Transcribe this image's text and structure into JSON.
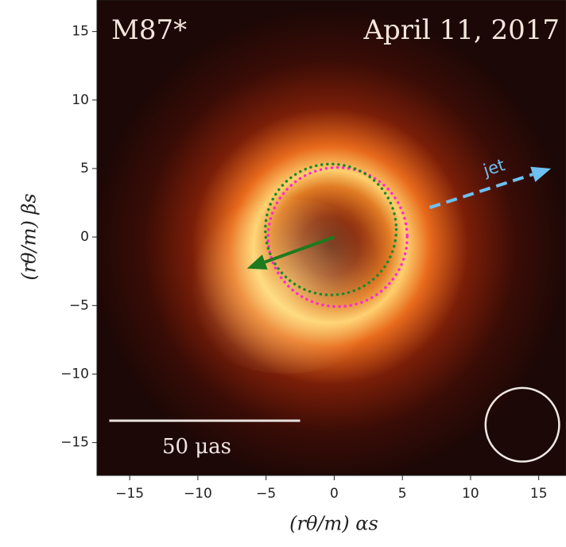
{
  "chart_data": {
    "type": "image",
    "title": "M87*",
    "subtitle": "April 11, 2017",
    "xlabel": "(rθ/m) αs",
    "ylabel": "(rθ/m) βs",
    "xlim": [
      -17.4,
      17
    ],
    "ylim": [
      -17.4,
      17.3
    ],
    "xticks": [
      {
        "value": -15,
        "label": "−15"
      },
      {
        "value": -10,
        "label": "−10"
      },
      {
        "value": -5,
        "label": "−5"
      },
      0,
      5,
      10,
      15
    ],
    "yticks": [
      {
        "value": -15,
        "label": "−15"
      },
      {
        "value": -10,
        "label": "−10"
      },
      {
        "value": -5,
        "label": "−5"
      },
      0,
      5,
      10,
      15
    ],
    "circles": [
      {
        "center": [
          0.25,
          0
        ],
        "radius": 5.1,
        "color": "#ff2ad0"
      },
      {
        "center": [
          -0.25,
          0.55
        ],
        "radius": 4.8,
        "color": "#1a8a2a"
      }
    ],
    "arrows": [
      {
        "from": [
          0,
          0
        ],
        "to": [
          -6.4,
          -2.3
        ],
        "color": "#1e7a1e",
        "dashed": false
      },
      {
        "from": [
          7,
          2.15
        ],
        "to": [
          15.9,
          5
        ],
        "color": "#6ec0f0",
        "dashed": true,
        "label": "jet"
      }
    ],
    "scale_bar": {
      "from": [
        -16.5,
        -13.4
      ],
      "to": [
        -2.5,
        -13.4
      ],
      "label": "50 μas"
    },
    "beam": {
      "center": [
        13.8,
        -13.7
      ],
      "radius": 2.7
    }
  }
}
